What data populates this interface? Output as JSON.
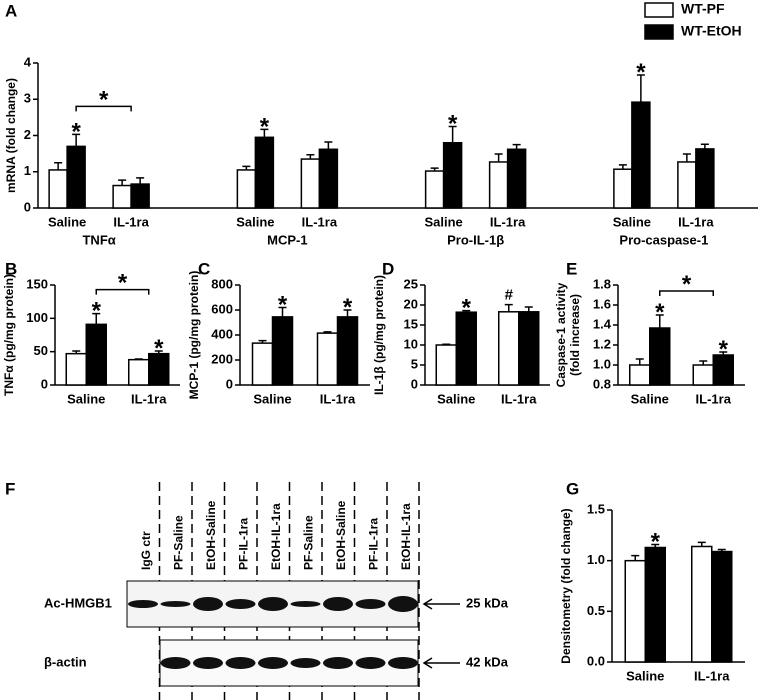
{
  "chart_data": [
    {
      "panel": "A",
      "type": "bar",
      "ylabel": "mRNA (fold change)",
      "categories": [
        "Saline",
        "IL-1ra",
        "Saline",
        "IL-1ra",
        "Saline",
        "IL-1ra",
        "Saline",
        "IL-1ra"
      ],
      "groups": [
        "TNFα",
        "MCP-1",
        "Pro-IL-1β",
        "Pro-caspase-1"
      ],
      "series": [
        {
          "name": "WT-PF",
          "color": "#ffffff",
          "values": [
            1.05,
            0.62,
            1.05,
            1.35,
            1.02,
            1.27,
            1.07,
            1.27
          ],
          "errors": [
            0.2,
            0.15,
            0.1,
            0.12,
            0.08,
            0.22,
            0.12,
            0.22
          ],
          "significance": [
            null,
            null,
            null,
            null,
            null,
            null,
            null,
            null
          ]
        },
        {
          "name": "WT-EtOH",
          "color": "#000000",
          "values": [
            1.7,
            0.66,
            1.95,
            1.62,
            1.8,
            1.62,
            2.92,
            1.63
          ],
          "errors": [
            0.33,
            0.17,
            0.22,
            0.2,
            0.45,
            0.13,
            0.75,
            0.13
          ],
          "significance": [
            "*",
            null,
            "*",
            null,
            "*",
            null,
            "*",
            null
          ]
        }
      ],
      "brackets": [
        {
          "label": "*",
          "categories": [
            0,
            1
          ]
        }
      ],
      "ylim": [
        0,
        4
      ],
      "yticks": [
        0,
        1,
        2,
        3,
        4
      ],
      "legend": "top-right"
    },
    {
      "panel": "B",
      "type": "bar",
      "ylabel": "TNFα (pg/mg protein)",
      "categories": [
        "Saline",
        "IL-1ra"
      ],
      "series": [
        {
          "color": "#ffffff",
          "values": [
            47,
            38
          ],
          "errors": [
            4,
            1
          ],
          "significance": [
            null,
            null
          ]
        },
        {
          "color": "#000000",
          "values": [
            91,
            47
          ],
          "errors": [
            16,
            4
          ],
          "significance": [
            "*",
            "*"
          ]
        }
      ],
      "brackets": [
        {
          "label": "*",
          "categories": [
            0,
            1
          ]
        }
      ],
      "ylim": [
        0,
        150
      ],
      "yticks": [
        0,
        50,
        100,
        150
      ]
    },
    {
      "panel": "C",
      "type": "bar",
      "ylabel": "MCP-1 (pg/mg protein)",
      "categories": [
        "Saline",
        "IL-1ra"
      ],
      "series": [
        {
          "color": "#ffffff",
          "values": [
            335,
            415
          ],
          "errors": [
            20,
            10
          ],
          "significance": [
            null,
            null
          ]
        },
        {
          "color": "#000000",
          "values": [
            545,
            545
          ],
          "errors": [
            75,
            55
          ],
          "significance": [
            "*",
            "*"
          ]
        }
      ],
      "ylim": [
        0,
        800
      ],
      "yticks": [
        0,
        200,
        400,
        600,
        800
      ]
    },
    {
      "panel": "D",
      "type": "bar",
      "ylabel": "IL-1β (pg/mg protein)",
      "categories": [
        "Saline",
        "IL-1ra"
      ],
      "series": [
        {
          "color": "#ffffff",
          "values": [
            10,
            18.3
          ],
          "errors": [
            0.2,
            1.8
          ],
          "significance": [
            null,
            "#"
          ]
        },
        {
          "color": "#000000",
          "values": [
            18.2,
            18.3
          ],
          "errors": [
            0.4,
            1.2
          ],
          "significance": [
            "*",
            null
          ]
        }
      ],
      "ylim": [
        0,
        25
      ],
      "yticks": [
        0,
        5,
        10,
        15,
        20,
        25
      ]
    },
    {
      "panel": "E",
      "type": "bar",
      "ylabel": [
        "Caspase-1 activity",
        "(fold increase)"
      ],
      "categories": [
        "Saline",
        "IL-1ra"
      ],
      "series": [
        {
          "color": "#ffffff",
          "values": [
            1.0,
            1.0
          ],
          "errors": [
            0.06,
            0.04
          ],
          "significance": [
            null,
            null
          ]
        },
        {
          "color": "#000000",
          "values": [
            1.37,
            1.1
          ],
          "errors": [
            0.13,
            0.03
          ],
          "significance": [
            "*",
            "*"
          ]
        }
      ],
      "brackets": [
        {
          "label": "*",
          "categories": [
            0,
            1
          ]
        }
      ],
      "ylim": [
        0.8,
        1.8
      ],
      "yticks": [
        0.8,
        {
          "value": 1,
          "label": "1.0"
        },
        1.2,
        1.4,
        1.6,
        1.8
      ]
    },
    {
      "panel": "G",
      "type": "bar",
      "ylabel": "Densitometry (fold change)",
      "categories": [
        "Saline",
        "IL-1ra"
      ],
      "series": [
        {
          "color": "#ffffff",
          "values": [
            1.0,
            1.14
          ],
          "errors": [
            0.05,
            0.04
          ],
          "significance": [
            null,
            null
          ]
        },
        {
          "color": "#000000",
          "values": [
            1.13,
            1.09
          ],
          "errors": [
            0.03,
            0.02
          ],
          "significance": [
            "*",
            null
          ]
        }
      ],
      "ylim": [
        0,
        1.5
      ],
      "yticks": [
        {
          "value": 0,
          "label": "0.0"
        },
        0.5,
        {
          "value": 1,
          "label": "1.0"
        },
        1.5
      ]
    }
  ],
  "blot": {
    "panel": "F",
    "lanes": [
      "IgG ctr",
      "PF-Saline",
      "EtOH-Saline",
      "PF-IL-1ra",
      "EtOH-IL-1ra",
      "PF-Saline",
      "EtOH-Saline",
      "PF-IL-1ra",
      "EtOH-IL-1ra"
    ],
    "rows": [
      {
        "label": "Ac-HMGB1",
        "marker": "25 kDa"
      },
      {
        "label": "β-actin",
        "marker": "42 kDa"
      }
    ]
  }
}
